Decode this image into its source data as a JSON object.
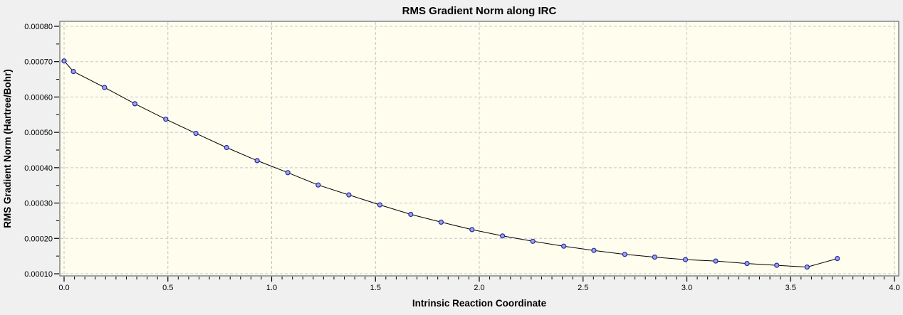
{
  "chart_data": {
    "type": "line",
    "title": "RMS Gradient Norm along IRC",
    "xlabel": "Intrinsic Reaction Coordinate",
    "ylabel": "RMS Gradient Norm (Hartree/Bohr)",
    "xlim": [
      0.0,
      4.0
    ],
    "ylim": [
      0.0001,
      0.0008
    ],
    "x_tick_values": [
      0.0,
      0.5,
      1.0,
      1.5,
      2.0,
      2.5,
      3.0,
      3.5,
      4.0
    ],
    "x_tick_labels": [
      "0.0",
      "0.5",
      "1.0",
      "1.5",
      "2.0",
      "2.5",
      "3.0",
      "3.5",
      "4.0"
    ],
    "x_minor_step": 0.05,
    "y_tick_values": [
      0.0001,
      0.0002,
      0.0003,
      0.0004,
      0.0005,
      0.0006,
      0.0007,
      0.0008
    ],
    "y_tick_labels": [
      "0.00010",
      "0.00020",
      "0.00030",
      "0.00040",
      "0.00050",
      "0.00060",
      "0.00070",
      "0.00080"
    ],
    "y_minor_step": 5e-05,
    "grid": "dashed major gridlines, both axes",
    "legend": "none",
    "series": [
      {
        "name": "RMS gradient norm",
        "marker": "circle",
        "x": [
          0.0,
          0.045,
          0.195,
          0.341,
          0.49,
          0.635,
          0.783,
          0.93,
          1.078,
          1.224,
          1.372,
          1.521,
          1.67,
          1.816,
          1.965,
          2.112,
          2.258,
          2.407,
          2.552,
          2.701,
          2.845,
          2.993,
          3.139,
          3.29,
          3.433,
          3.579,
          3.725
        ],
        "y": [
          0.000702,
          0.000672,
          0.000627,
          0.000581,
          0.000537,
          0.000497,
          0.000457,
          0.00042,
          0.000386,
          0.000351,
          0.000323,
          0.000295,
          0.000268,
          0.000246,
          0.000225,
          0.000207,
          0.000192,
          0.000178,
          0.000166,
          0.000155,
          0.000147,
          0.00014,
          0.000136,
          0.000129,
          0.000124,
          0.000119,
          0.000143
        ]
      }
    ],
    "colors": {
      "outer_background": "#f0f0f0",
      "plot_background": "#fffdee",
      "grid": "#c6c6c6",
      "frame": "#848484",
      "tick": "#000000",
      "line": "#000000",
      "marker_fill": "#9ca4e6",
      "marker_edge": "#2828a0",
      "text": "#000000"
    }
  }
}
